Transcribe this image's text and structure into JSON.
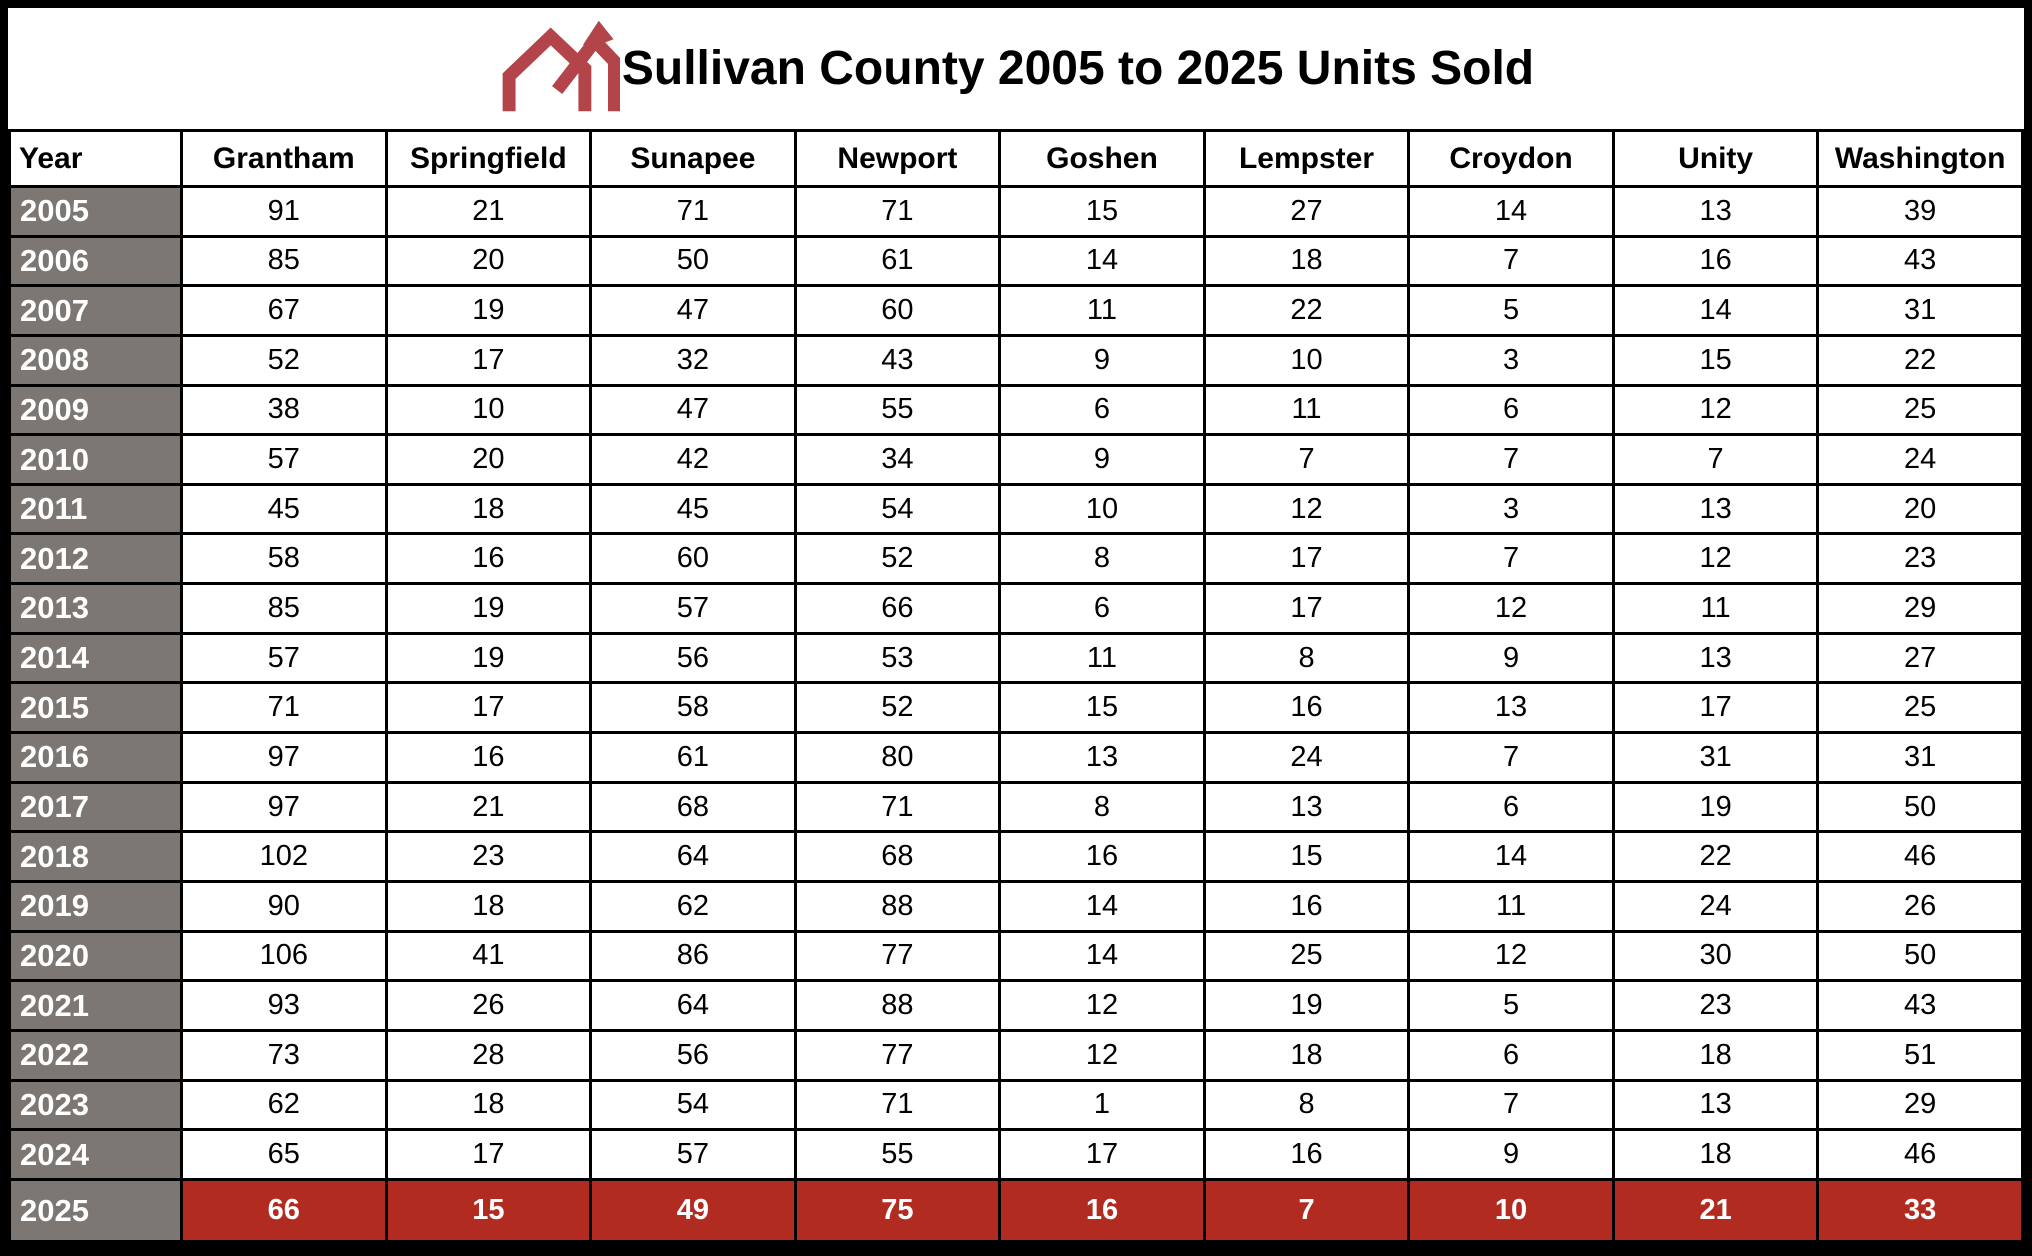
{
  "title": "Sullivan County 2005 to 2025 Units Sold",
  "logo": {
    "icon": "double-roofline-arrow",
    "color": "#B2444A"
  },
  "colors": {
    "background": "#FFFFFF",
    "grid": "#000000",
    "year_column_bg": "#7C7772",
    "year_column_text": "#FFFFFF",
    "highlight_row_bg": "#B12B21",
    "highlight_row_text": "#FFFFFF"
  },
  "chart_data": {
    "type": "table",
    "title": "Sullivan County 2005 to 2025 Units Sold",
    "columns": [
      "Year",
      "Grantham",
      "Springfield",
      "Sunapee",
      "Newport",
      "Goshen",
      "Lempster",
      "Croydon",
      "Unity",
      "Washington"
    ],
    "highlighted_year": "2025",
    "rows": [
      {
        "year": "2005",
        "values": [
          91,
          21,
          71,
          71,
          15,
          27,
          14,
          13,
          39
        ],
        "highlight": false
      },
      {
        "year": "2006",
        "values": [
          85,
          20,
          50,
          61,
          14,
          18,
          7,
          16,
          43
        ],
        "highlight": false
      },
      {
        "year": "2007",
        "values": [
          67,
          19,
          47,
          60,
          11,
          22,
          5,
          14,
          31
        ],
        "highlight": false
      },
      {
        "year": "2008",
        "values": [
          52,
          17,
          32,
          43,
          9,
          10,
          3,
          15,
          22
        ],
        "highlight": false
      },
      {
        "year": "2009",
        "values": [
          38,
          10,
          47,
          55,
          6,
          11,
          6,
          12,
          25
        ],
        "highlight": false
      },
      {
        "year": "2010",
        "values": [
          57,
          20,
          42,
          34,
          9,
          7,
          7,
          7,
          24
        ],
        "highlight": false
      },
      {
        "year": "2011",
        "values": [
          45,
          18,
          45,
          54,
          10,
          12,
          3,
          13,
          20
        ],
        "highlight": false
      },
      {
        "year": "2012",
        "values": [
          58,
          16,
          60,
          52,
          8,
          17,
          7,
          12,
          23
        ],
        "highlight": false
      },
      {
        "year": "2013",
        "values": [
          85,
          19,
          57,
          66,
          6,
          17,
          12,
          11,
          29
        ],
        "highlight": false
      },
      {
        "year": "2014",
        "values": [
          57,
          19,
          56,
          53,
          11,
          8,
          9,
          13,
          27
        ],
        "highlight": false
      },
      {
        "year": "2015",
        "values": [
          71,
          17,
          58,
          52,
          15,
          16,
          13,
          17,
          25
        ],
        "highlight": false
      },
      {
        "year": "2016",
        "values": [
          97,
          16,
          61,
          80,
          13,
          24,
          7,
          31,
          31
        ],
        "highlight": false
      },
      {
        "year": "2017",
        "values": [
          97,
          21,
          68,
          71,
          8,
          13,
          6,
          19,
          50
        ],
        "highlight": false
      },
      {
        "year": "2018",
        "values": [
          102,
          23,
          64,
          68,
          16,
          15,
          14,
          22,
          46
        ],
        "highlight": false
      },
      {
        "year": "2019",
        "values": [
          90,
          18,
          62,
          88,
          14,
          16,
          11,
          24,
          26
        ],
        "highlight": false
      },
      {
        "year": "2020",
        "values": [
          106,
          41,
          86,
          77,
          14,
          25,
          12,
          30,
          50
        ],
        "highlight": false
      },
      {
        "year": "2021",
        "values": [
          93,
          26,
          64,
          88,
          12,
          19,
          5,
          23,
          43
        ],
        "highlight": false
      },
      {
        "year": "2022",
        "values": [
          73,
          28,
          56,
          77,
          12,
          18,
          6,
          18,
          51
        ],
        "highlight": false
      },
      {
        "year": "2023",
        "values": [
          62,
          18,
          54,
          71,
          1,
          8,
          7,
          13,
          29
        ],
        "highlight": false
      },
      {
        "year": "2024",
        "values": [
          65,
          17,
          57,
          55,
          17,
          16,
          9,
          18,
          46
        ],
        "highlight": false
      },
      {
        "year": "2025",
        "values": [
          66,
          15,
          49,
          75,
          16,
          7,
          10,
          21,
          33
        ],
        "highlight": true
      }
    ]
  }
}
